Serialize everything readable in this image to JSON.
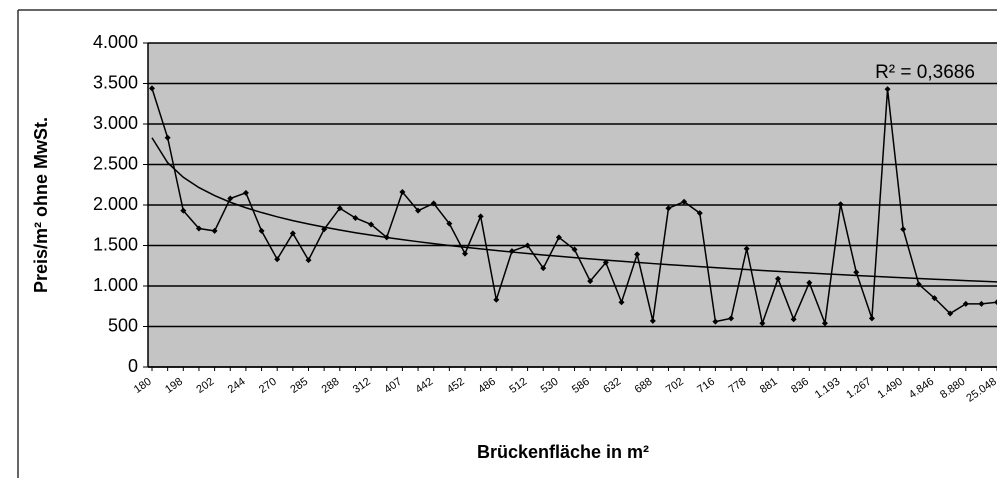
{
  "chart_data": {
    "type": "line",
    "x_label": "Brückenfläche in m²",
    "y_label": "Preis/m² ohne MwSt.",
    "annotation": "R² = 0,3686",
    "categories": [
      "180",
      null,
      "198",
      null,
      "202",
      null,
      "244",
      null,
      "270",
      null,
      "285",
      null,
      "288",
      null,
      "312",
      null,
      "407",
      null,
      "442",
      null,
      "452",
      null,
      "486",
      null,
      "512",
      null,
      "530",
      null,
      "586",
      null,
      "632",
      null,
      "688",
      null,
      "702",
      null,
      "716",
      null,
      "778",
      null,
      "881",
      null,
      "836",
      null,
      "1.193",
      null,
      "1.267",
      null,
      "1.490",
      null,
      "4.846",
      null,
      "8.880",
      null,
      "25.048"
    ],
    "series": [
      {
        "color": "#000000",
        "marker": true,
        "values": [
          3440,
          2830,
          1930,
          1710,
          1680,
          2080,
          2150,
          1680,
          1330,
          1650,
          1320,
          1700,
          1960,
          1840,
          1760,
          1600,
          2160,
          1930,
          2020,
          1770,
          1400,
          1860,
          830,
          1430,
          1500,
          1220,
          1600,
          1450,
          1060,
          1290,
          800,
          1390,
          570,
          1960,
          2040,
          1900,
          560,
          600,
          1460,
          540,
          1090,
          590,
          1040,
          540,
          2010,
          1170,
          600,
          3430,
          1700,
          1020,
          850,
          660,
          780,
          780,
          800
        ]
      },
      {
        "color": "#000000",
        "marker": false,
        "values": [
          2830,
          2522,
          2342,
          2215,
          2116,
          2034,
          1966,
          1907,
          1854,
          1807,
          1765,
          1727,
          1691,
          1658,
          1628,
          1599,
          1572,
          1547,
          1523,
          1500,
          1478,
          1458,
          1438,
          1419,
          1401,
          1383,
          1367,
          1351,
          1335,
          1320,
          1305,
          1291,
          1277,
          1264,
          1252,
          1239,
          1227,
          1215,
          1203,
          1192,
          1181,
          1170,
          1160,
          1150,
          1140,
          1130,
          1121,
          1111,
          1102,
          1093,
          1084,
          1076,
          1067,
          1059,
          1051
        ]
      }
    ],
    "ylim": [
      0,
      4000
    ],
    "yticks": [
      0,
      500,
      {
        "value": 1000,
        "label": "1.000"
      },
      {
        "value": 1500,
        "label": "1.500"
      },
      {
        "value": 2000,
        "label": "2.000"
      },
      {
        "value": 2500,
        "label": "2.500"
      },
      {
        "value": 3000,
        "label": "3.000"
      },
      {
        "value": 3500,
        "label": "3.500"
      },
      {
        "value": 4000,
        "label": "4.000"
      }
    ],
    "grid": true
  }
}
